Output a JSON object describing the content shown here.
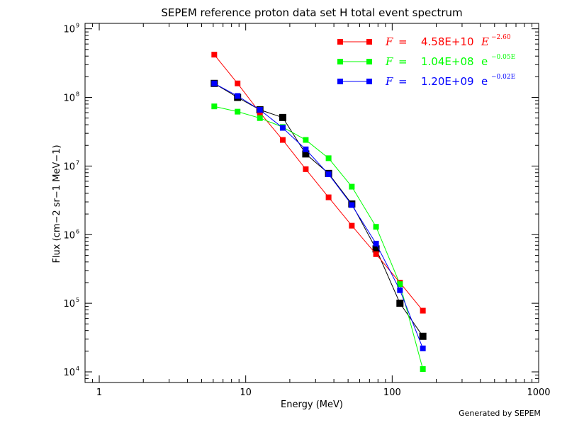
{
  "chart_data": {
    "type": "scatter",
    "title": "SEPEM reference proton data set H total event spectrum",
    "xlabel": "Energy (MeV)",
    "ylabel": "Flux (cm−2 sr−1 MeV−1)",
    "x_scale": "log",
    "y_scale": "log",
    "xlim": [
      0.8,
      1000
    ],
    "ylim": [
      7000,
      1200000000
    ],
    "x_ticks": [
      {
        "value": 1,
        "label": "1"
      },
      {
        "value": 10,
        "label": "10"
      },
      {
        "value": 100,
        "label": "100"
      },
      {
        "value": 1000,
        "label": "1000"
      }
    ],
    "y_ticks": [
      {
        "value": 10000,
        "base": "10",
        "exp": "4"
      },
      {
        "value": 100000,
        "base": "10",
        "exp": "5"
      },
      {
        "value": 1000000,
        "base": "10",
        "exp": "6"
      },
      {
        "value": 10000000,
        "base": "10",
        "exp": "7"
      },
      {
        "value": 100000000,
        "base": "10",
        "exp": "8"
      },
      {
        "value": 1000000000,
        "base": "10",
        "exp": "9"
      }
    ],
    "grid": false,
    "legend_position": "top-right",
    "series": [
      {
        "key": "data",
        "color": "#000000",
        "marker_size": 10,
        "x": [
          6.1,
          8.8,
          12.5,
          17.9,
          25.7,
          36.8,
          53.0,
          77.6,
          113.0,
          162.0
        ],
        "y": [
          160000000,
          100000000,
          66000000,
          51000000,
          15000000,
          7800000,
          2800000,
          620000,
          100000,
          33000
        ]
      },
      {
        "key": "power_law",
        "color": "#ff0000",
        "marker_size": 8,
        "x": [
          6.1,
          8.8,
          12.5,
          17.9,
          25.7,
          36.8,
          53.0,
          77.6,
          113.0,
          162.0
        ],
        "y": [
          420000000,
          160000000,
          60000000,
          24000000,
          9000000,
          3500000,
          1350000,
          520000,
          200000,
          78000
        ]
      },
      {
        "key": "exponential",
        "color": "#00ff00",
        "marker_size": 8,
        "x": [
          6.1,
          8.8,
          12.5,
          17.9,
          25.7,
          36.8,
          53.0,
          77.6,
          113.0,
          162.0
        ],
        "y": [
          74000000,
          62000000,
          50000000,
          37000000,
          24000000,
          13000000,
          5000000,
          1300000,
          190000,
          11000
        ]
      },
      {
        "key": "exp_sqrt",
        "color": "#0000ff",
        "marker_size": 8,
        "x": [
          6.1,
          8.8,
          12.5,
          17.9,
          25.7,
          36.8,
          53.0,
          77.6,
          113.0,
          162.0
        ],
        "y": [
          160000000,
          105000000,
          66000000,
          36000000,
          17500000,
          7600000,
          2700000,
          740000,
          155000,
          22000
        ]
      }
    ],
    "legend": [
      {
        "series": "power_law",
        "color": "#ff0000",
        "f": "F",
        "eq": "=",
        "coef": "4.58E+10",
        "base": "E",
        "exp": "−2.60"
      },
      {
        "series": "exponential",
        "color": "#00ff00",
        "f": "F",
        "eq": "=",
        "coef": "1.04E+08",
        "base": "e",
        "exp": "−0.05E"
      },
      {
        "series": "exp_sqrt",
        "color": "#0000ff",
        "f": "F",
        "eq": "=",
        "coef": "1.20E+09",
        "base": "e",
        "exp": "−0.02E"
      }
    ]
  },
  "footer": {
    "credit": "Generated by SEPEM"
  }
}
